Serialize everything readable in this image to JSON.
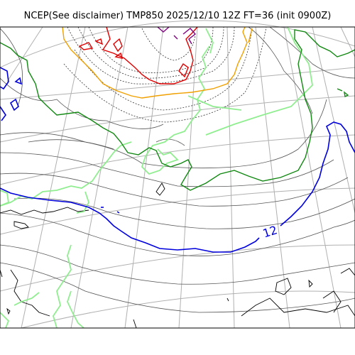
{
  "title": "NCEP(See disclaimer) TMP850 2025/12/10 12Z FT=36 (init 0900Z)",
  "contour_label": "12",
  "colors": {
    "background": "#ffffff",
    "frame": "#000000",
    "graticule": "#b0b0b0",
    "coastline": "#000000",
    "isotherm_dashed": "#333333",
    "isotherm_light": "#555555",
    "isotherm_red": "#e00000",
    "isotherm_orange": "#f0a000",
    "isotherm_green": "#118811",
    "isotherm_blue": "#0000dd",
    "isotherm_lightgreen": "#90ee90",
    "isotherm_purple": "#800080"
  }
}
